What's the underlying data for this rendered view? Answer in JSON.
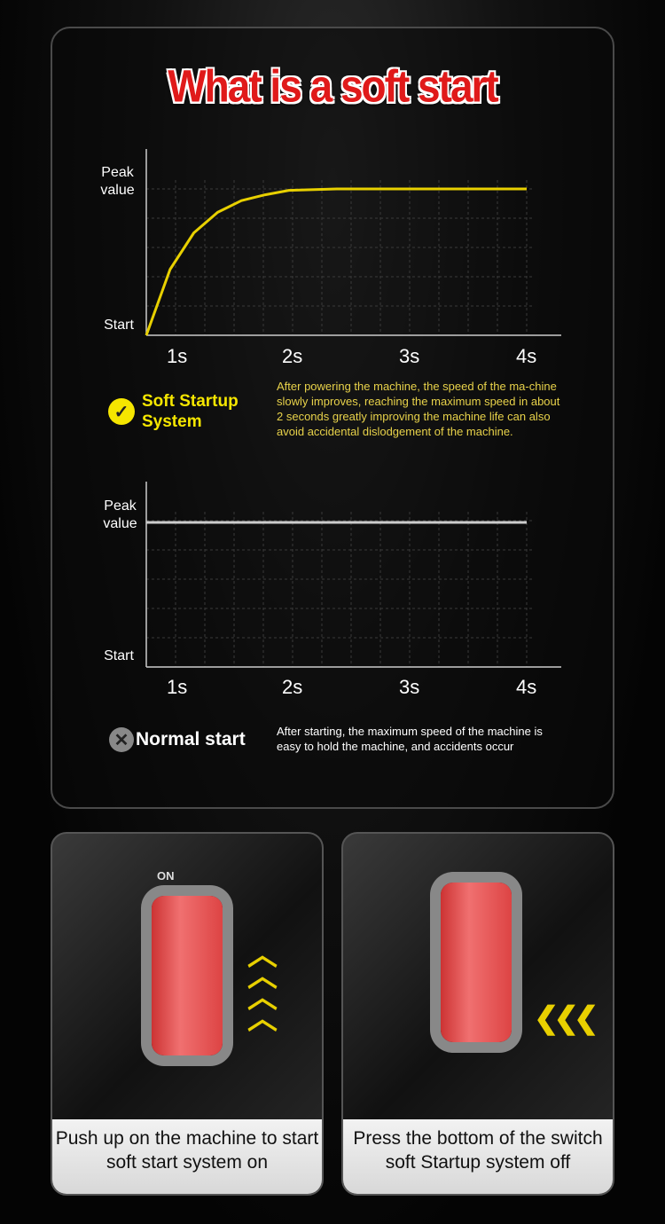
{
  "title": "What is a soft start",
  "charts": [
    {
      "type": "line",
      "y_labels": [
        "Peak value",
        "Start"
      ],
      "x_ticks": [
        "1s",
        "2s",
        "3s",
        "4s"
      ],
      "series_color": "#e8d000",
      "x": [
        0,
        0.25,
        0.5,
        0.75,
        1,
        1.25,
        1.5,
        2,
        3,
        4
      ],
      "y": [
        0,
        0.45,
        0.7,
        0.84,
        0.92,
        0.96,
        0.99,
        1,
        1,
        1
      ]
    },
    {
      "type": "line",
      "y_labels": [
        "Peak value",
        "Start"
      ],
      "x_ticks": [
        "1s",
        "2s",
        "3s",
        "4s"
      ],
      "series_color": "#cccccc",
      "x": [
        0,
        4
      ],
      "y": [
        1,
        1
      ]
    }
  ],
  "soft": {
    "label": "Soft Startup System",
    "icon": "check-icon",
    "color": "#f5e600",
    "text": "After powering the machine, the speed of the ma-chine slowly improves, reaching the maximum speed in about 2 seconds greatly improving the machine life can also avoid accidental dislodgement of the machine."
  },
  "normal": {
    "label": "Normal start",
    "icon": "x-icon",
    "text": "After starting, the maximum speed of the machine is easy to hold the machine, and accidents occur"
  },
  "cards": [
    {
      "switch_label": "ON",
      "caption": "Push up on the machine to start soft start system on"
    },
    {
      "caption": "Press the bottom of the switch soft Startup system off"
    }
  ]
}
